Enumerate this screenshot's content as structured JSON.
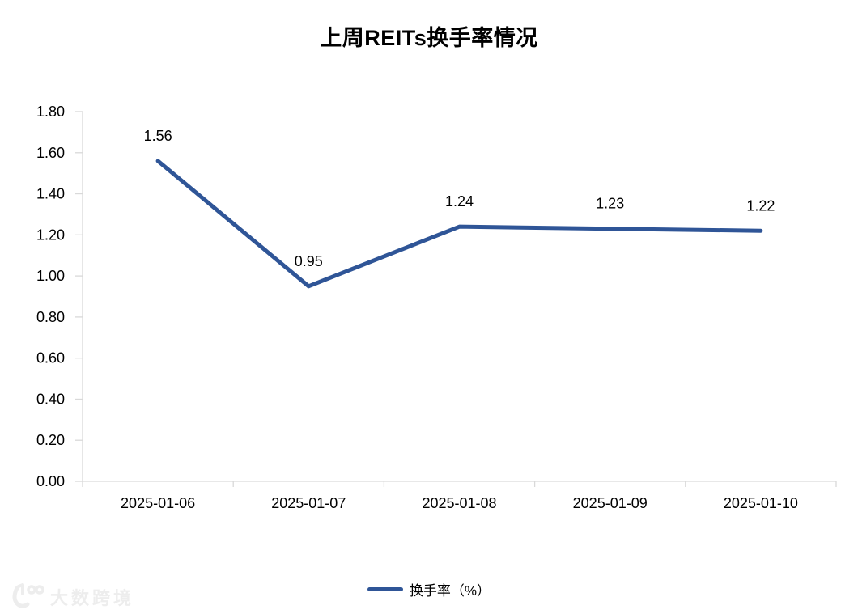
{
  "title": "上周REITs换手率情况",
  "legend": {
    "label": "换手率（%）",
    "marker": "line"
  },
  "watermark": {
    "text": "大数跨境",
    "logo": "100-swoosh-logo"
  },
  "colors": {
    "series_line": "#2F5597",
    "axis": "#D9D9D9",
    "text": "#000000",
    "watermark": "#EDEDED",
    "background": "#FFFFFF"
  },
  "chart_data": {
    "type": "line",
    "title": "上周REITs换手率情况",
    "categories": [
      "2025-01-06",
      "2025-01-07",
      "2025-01-08",
      "2025-01-09",
      "2025-01-10"
    ],
    "series": [
      {
        "name": "换手率（%）",
        "color": "#2F5597",
        "values": [
          1.56,
          0.95,
          1.24,
          1.23,
          1.22
        ]
      }
    ],
    "data_labels": [
      "1.56",
      "0.95",
      "1.24",
      "1.23",
      "1.22"
    ],
    "xlabel": "",
    "ylabel": "",
    "ylim": [
      0,
      1.8
    ],
    "ytick_step": 0.2,
    "ytick_labels": [
      "0.00",
      "0.20",
      "0.40",
      "0.60",
      "0.80",
      "1.00",
      "1.20",
      "1.40",
      "1.60",
      "1.80"
    ],
    "grid": false,
    "legend_position": "bottom"
  }
}
